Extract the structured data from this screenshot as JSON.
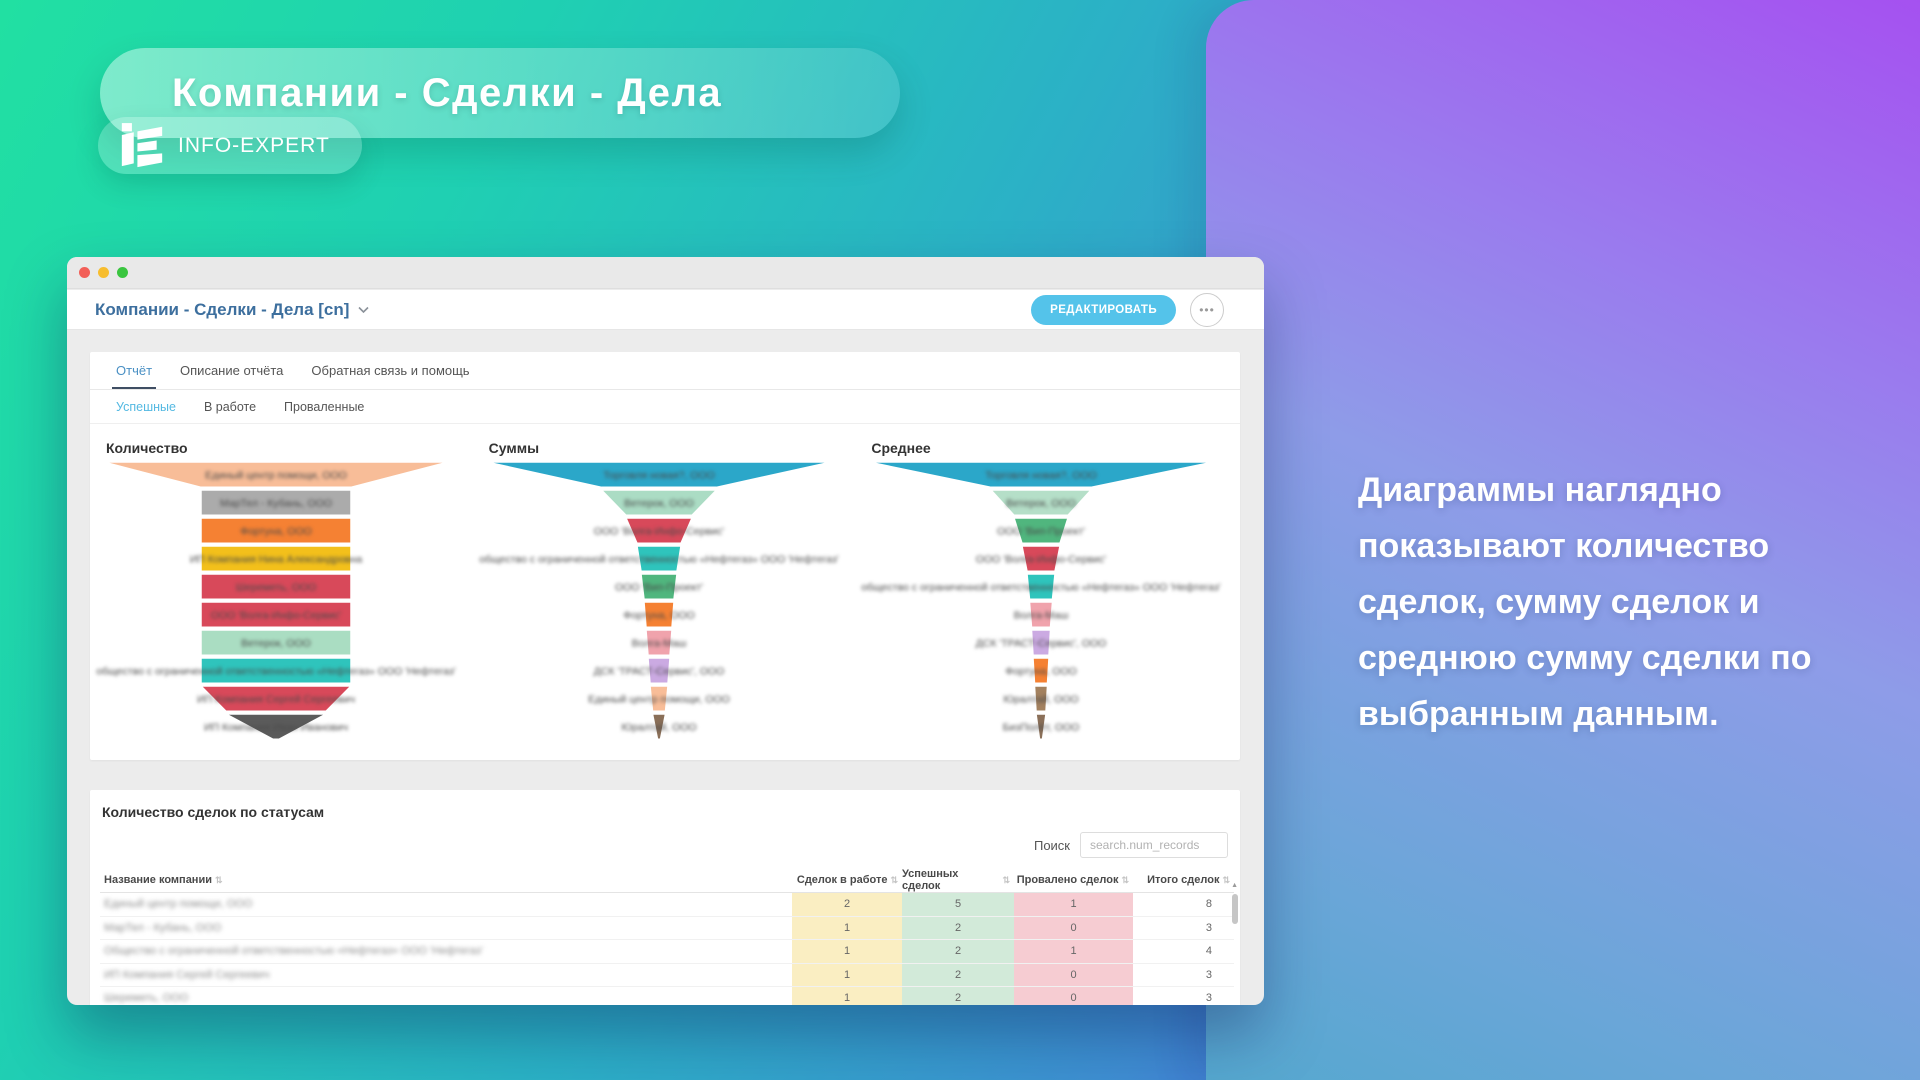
{
  "banner": {
    "title": "Компании - Сделки - Дела",
    "brand": "INFO-EXPERT"
  },
  "window": {
    "traffic_lights": {
      "close": "#f25f58",
      "minimize": "#f7bd2e",
      "zoom": "#39c53f"
    },
    "title": "Компании - Сделки - Дела [cn]",
    "edit_button": "РЕДАКТИРОВАТЬ",
    "more_button": "•••",
    "tabs": [
      {
        "label": "Отчёт",
        "active": true
      },
      {
        "label": "Описание отчёта",
        "active": false
      },
      {
        "label": "Обратная связь и помощь",
        "active": false
      }
    ],
    "subtabs": [
      {
        "label": "Успешные",
        "active": true
      },
      {
        "label": "В работе",
        "active": false
      },
      {
        "label": "Проваленные",
        "active": false
      }
    ]
  },
  "chart_data": [
    {
      "type": "funnel",
      "title": "Количество",
      "labels_blurred": true,
      "segments": [
        {
          "label": "Единый центр помощи, ООО",
          "color": "#f8bd98",
          "top_w": 345,
          "bottom_w": 150
        },
        {
          "label": "МарТел - Кубань, ООО",
          "color": "#ababab",
          "top_w": 150,
          "bottom_w": 150
        },
        {
          "label": "Фортуна, ООО",
          "color": "#f58133",
          "top_w": 150,
          "bottom_w": 150
        },
        {
          "label": "ИП Компания Нина Александровна",
          "color": "#f3c01b",
          "top_w": 150,
          "bottom_w": 150
        },
        {
          "label": "Шереметь, ООО",
          "color": "#d8495a",
          "top_w": 150,
          "bottom_w": 150
        },
        {
          "label": "ООО 'Волга-Инфо-Сервис'",
          "color": "#d8495a",
          "top_w": 150,
          "bottom_w": 150
        },
        {
          "label": "Ветерок, ООО",
          "color": "#aaddc2",
          "top_w": 150,
          "bottom_w": 150
        },
        {
          "label": "общество с ограниченной ответственностью «Нефтегаз» ООО 'Нефтегаз'",
          "color": "#2fc4bc",
          "top_w": 150,
          "bottom_w": 150
        },
        {
          "label": "ИП Компания Сергей Сергеевич",
          "color": "#d8495a",
          "top_w": 150,
          "bottom_w": 100
        },
        {
          "label": "ИП Компания Иван Иванович",
          "color": "#5b5b5b",
          "top_w": 100,
          "bottom_w": 6
        }
      ]
    },
    {
      "type": "funnel",
      "title": "Суммы",
      "labels_blurred": true,
      "segments": [
        {
          "label": "Торговля новая?, ООО",
          "color": "#2ba7c9",
          "top_w": 345,
          "bottom_w": 115
        },
        {
          "label": "Ветерок, ООО",
          "color": "#abdcc4",
          "top_w": 115,
          "bottom_w": 66
        },
        {
          "label": "ООО 'Волга-Инфо-Сервис'",
          "color": "#d8495a",
          "top_w": 66,
          "bottom_w": 44
        },
        {
          "label": "общество с ограниченной ответственностью «Нефтегаз» ООО 'Нефтегаз'",
          "color": "#2fc4bc",
          "top_w": 44,
          "bottom_w": 36
        },
        {
          "label": "ООО 'Вип-Проект'",
          "color": "#50b67e",
          "top_w": 36,
          "bottom_w": 30
        },
        {
          "label": "Фортуна, ООО",
          "color": "#f58133",
          "top_w": 30,
          "bottom_w": 26
        },
        {
          "label": "Волга-Маш",
          "color": "#f0a3ac",
          "top_w": 26,
          "bottom_w": 22
        },
        {
          "label": "ДСК 'ТРАСТ-Сервис', ООО",
          "color": "#cbaae2",
          "top_w": 22,
          "bottom_w": 18
        },
        {
          "label": "Единый центр помощи, ООО",
          "color": "#f8bd98",
          "top_w": 18,
          "bottom_w": 13
        },
        {
          "label": "Юралтай, ООО",
          "color": "#8a6f58",
          "top_w": 13,
          "bottom_w": 3
        }
      ]
    },
    {
      "type": "funnel",
      "title": "Среднее",
      "labels_blurred": true,
      "segments": [
        {
          "label": "Торговля новая?, ООО",
          "color": "#2ba7c9",
          "top_w": 345,
          "bottom_w": 100
        },
        {
          "label": "Ветерок, ООО",
          "color": "#b5dfc8",
          "top_w": 100,
          "bottom_w": 54
        },
        {
          "label": "ООО 'Вип-Проект'",
          "color": "#50b67e",
          "top_w": 54,
          "bottom_w": 38
        },
        {
          "label": "ООО 'Волга-Инфо-Сервис'",
          "color": "#d8495a",
          "top_w": 38,
          "bottom_w": 28
        },
        {
          "label": "общество с ограниченной ответственностью «Нефтегаз» ООО 'Нефтегаз'",
          "color": "#2fc4bc",
          "top_w": 28,
          "bottom_w": 23
        },
        {
          "label": "Волга-Маш",
          "color": "#f0a3ac",
          "top_w": 23,
          "bottom_w": 19
        },
        {
          "label": "ДСК 'ТРАСТ-Сервис', ООО",
          "color": "#cbaae2",
          "top_w": 19,
          "bottom_w": 16
        },
        {
          "label": "Фортуна, ООО",
          "color": "#f58133",
          "top_w": 16,
          "bottom_w": 13
        },
        {
          "label": "Юралтай, ООО",
          "color": "#a3815f",
          "top_w": 13,
          "bottom_w": 10
        },
        {
          "label": "БизПолёт, ООО",
          "color": "#8a6f58",
          "top_w": 10,
          "bottom_w": 3
        }
      ]
    },
    {
      "type": "table",
      "title": "Количество сделок по статусам",
      "columns": [
        "Название компании",
        "Сделок в работе",
        "Успешных сделок",
        "Провалено сделок",
        "Итого сделок"
      ],
      "rows": [
        [
          2,
          5,
          1,
          8
        ],
        [
          1,
          2,
          0,
          3
        ],
        [
          1,
          2,
          1,
          4
        ],
        [
          1,
          2,
          0,
          3
        ],
        [
          1,
          2,
          0,
          3
        ]
      ]
    }
  ],
  "table": {
    "title": "Количество сделок по статусам",
    "search_label": "Поиск",
    "search_placeholder": "search.num_records",
    "sort_icon": "⇅",
    "names_blurred": true,
    "columns": [
      {
        "label": "Название компании",
        "bg": ""
      },
      {
        "label": "Сделок в работе",
        "bg": "#faeec2"
      },
      {
        "label": "Успешных сделок",
        "bg": "#d2ead9"
      },
      {
        "label": "Провалено сделок",
        "bg": "#f6ccd2"
      },
      {
        "label": "Итого сделок",
        "bg": ""
      }
    ],
    "rows": [
      {
        "name": "Единый центр помощи, ООО",
        "values": [
          2,
          5,
          1,
          8
        ]
      },
      {
        "name": "МарТел - Кубань, ООО",
        "values": [
          1,
          2,
          0,
          3
        ]
      },
      {
        "name": "Общество с ограниченной ответственностью «Нефтегаз» ООО 'Нефтегаз'",
        "values": [
          1,
          2,
          1,
          4
        ]
      },
      {
        "name": "ИП Компания Сергей Сергеевич",
        "values": [
          1,
          2,
          0,
          3
        ]
      },
      {
        "name": "Шереметь, ООО",
        "values": [
          1,
          2,
          0,
          3
        ]
      }
    ]
  },
  "aside": {
    "lines": [
      "Диаграммы наглядно",
      "показывают количество",
      "сделок, сумму сделок и",
      "среднюю сумму сделки по",
      "выбранным данным."
    ]
  },
  "colors": {
    "accent_button": "#54c3ea",
    "window_title_blue": "#3d6f9e",
    "tab_active": "#4a90c4",
    "subtab_active": "#54b9e2",
    "col_in_work_bg": "#faeec2",
    "col_success_bg": "#d2ead9",
    "col_failed_bg": "#f6ccd2",
    "bg_gradient": [
      "#21e0a2",
      "#2bb1c6",
      "#3f8ed2",
      "#6b2ed6"
    ],
    "panel_gradient": [
      "#a551f0",
      "#8e9ce8",
      "#55a8cf"
    ]
  }
}
